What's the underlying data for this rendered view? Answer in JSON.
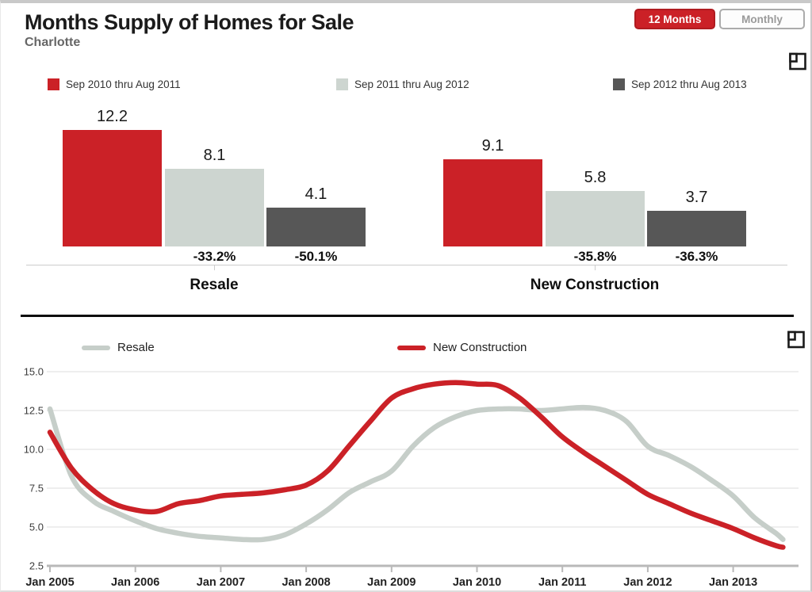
{
  "header": {
    "title": "Months Supply of Homes for Sale",
    "subtitle": "Charlotte",
    "toggles": [
      {
        "label": "12 Months",
        "selected": true
      },
      {
        "label": "Monthly",
        "selected": false
      }
    ]
  },
  "colors": {
    "accent_red": "#cb2127",
    "bar_light_gray": "#cdd5d0",
    "bar_dark_gray": "#575757",
    "line_gray": "#c6cec9",
    "grid_gray": "#dcdcdc",
    "axis_gray": "#b9b9b9"
  },
  "chart_data": [
    {
      "type": "bar",
      "categories": [
        "Resale",
        "New Construction"
      ],
      "series": [
        {
          "name": "Sep 2010 thru Aug 2011",
          "color": "#cb2127",
          "values": [
            12.2,
            9.1
          ],
          "pct_change": [
            null,
            null
          ]
        },
        {
          "name": "Sep 2011 thru Aug 2012",
          "color": "#cdd5d0",
          "values": [
            8.1,
            5.8
          ],
          "pct_change": [
            "-33.2%",
            "-35.8%"
          ]
        },
        {
          "name": "Sep 2012 thru Aug 2013",
          "color": "#575757",
          "values": [
            4.1,
            3.7
          ],
          "pct_change": [
            "-50.1%",
            "-36.3%"
          ]
        }
      ],
      "ylim": [
        0,
        12.2
      ],
      "legend_position": "top",
      "grid": "off"
    },
    {
      "type": "line",
      "x": [
        "Jan 2005",
        "Apr 2005",
        "Jul 2005",
        "Oct 2005",
        "Jan 2006",
        "Apr 2006",
        "Jul 2006",
        "Oct 2006",
        "Jan 2007",
        "Apr 2007",
        "Jul 2007",
        "Oct 2007",
        "Jan 2008",
        "Apr 2008",
        "Jul 2008",
        "Oct 2008",
        "Jan 2009",
        "Apr 2009",
        "Jul 2009",
        "Oct 2009",
        "Jan 2010",
        "Apr 2010",
        "Jul 2010",
        "Oct 2010",
        "Jan 2011",
        "Apr 2011",
        "Jul 2011",
        "Oct 2011",
        "Jan 2012",
        "Apr 2012",
        "Jul 2012",
        "Oct 2012",
        "Jan 2013",
        "Apr 2013",
        "Jul 2013",
        "Aug 2013"
      ],
      "series": [
        {
          "name": "Resale",
          "color": "#c6cec9",
          "values": [
            12.6,
            8.3,
            6.7,
            6.0,
            5.4,
            4.9,
            4.6,
            4.4,
            4.3,
            4.2,
            4.2,
            4.5,
            5.2,
            6.1,
            7.2,
            7.9,
            8.6,
            10.2,
            11.4,
            12.1,
            12.5,
            12.6,
            12.6,
            12.5,
            12.6,
            12.7,
            12.5,
            11.8,
            10.2,
            9.6,
            8.9,
            8.0,
            7.0,
            5.6,
            4.6,
            4.2
          ]
        },
        {
          "name": "New Construction",
          "color": "#cb2127",
          "values": [
            11.1,
            8.8,
            7.4,
            6.5,
            6.1,
            6.0,
            6.5,
            6.7,
            7.0,
            7.1,
            7.2,
            7.4,
            7.7,
            8.6,
            10.2,
            11.8,
            13.3,
            13.9,
            14.2,
            14.3,
            14.2,
            14.1,
            13.3,
            12.1,
            10.8,
            9.8,
            8.9,
            8.0,
            7.1,
            6.5,
            5.9,
            5.4,
            4.9,
            4.3,
            3.8,
            3.7
          ]
        }
      ],
      "x_tick_labels": [
        "Jan 2005",
        "Jan 2006",
        "Jan 2007",
        "Jan 2008",
        "Jan 2009",
        "Jan 2010",
        "Jan 2011",
        "Jan 2012",
        "Jan 2013"
      ],
      "y_ticks": [
        2.5,
        5.0,
        7.5,
        10.0,
        12.5,
        15.0
      ],
      "ylim": [
        2.5,
        15.0
      ],
      "grid": "horizontal",
      "legend_position": "top"
    }
  ]
}
